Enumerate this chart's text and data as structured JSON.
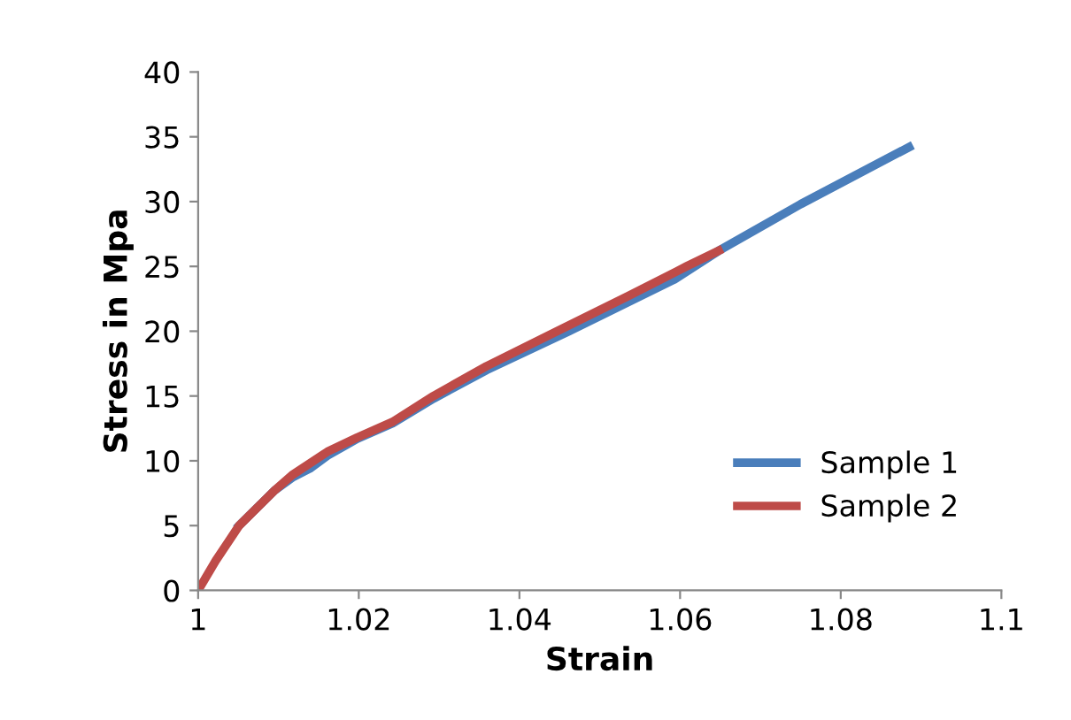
{
  "chart_data": {
    "type": "line",
    "xlabel": "Strain",
    "ylabel": "Stress in Mpa",
    "xlim": [
      1,
      1.1
    ],
    "xticks": [
      1,
      1.02,
      1.04,
      1.06,
      1.08,
      {
        "value": 1.1,
        "label": "1.1"
      }
    ],
    "ylim": [
      0,
      40
    ],
    "yticks": [
      0,
      5,
      10,
      15,
      20,
      25,
      30,
      35,
      40
    ],
    "grid": false,
    "legend": "bottom right",
    "marker": "none",
    "line_style": "solid",
    "series": [
      {
        "name": "Sample 1",
        "color": "#4a7ebb",
        "x": [
          1.0051,
          1.0095,
          1.0117,
          1.0139,
          1.0161,
          1.0198,
          1.0242,
          1.0293,
          1.0359,
          1.0462,
          1.0593,
          1.0648,
          1.075,
          1.0885
        ],
        "values": [
          5,
          7.7,
          8.7,
          9.4,
          10.4,
          11.7,
          12.9,
          14.8,
          17.0,
          20,
          24,
          26.2,
          29.8,
          34.2
        ]
      },
      {
        "name": "Sample 2",
        "color": "#be4b48",
        "x": [
          1,
          1.0022,
          1.0051,
          1.0095,
          1.0117,
          1.0161,
          1.0198,
          1.0242,
          1.0293,
          1.0359,
          1.0447,
          1.0535,
          1.0608,
          1.0648
        ],
        "values": [
          0,
          2.3,
          5,
          7.7,
          8.9,
          10.7,
          11.8,
          13.0,
          15,
          17.3,
          20,
          22.7,
          25,
          26.2
        ]
      }
    ]
  }
}
